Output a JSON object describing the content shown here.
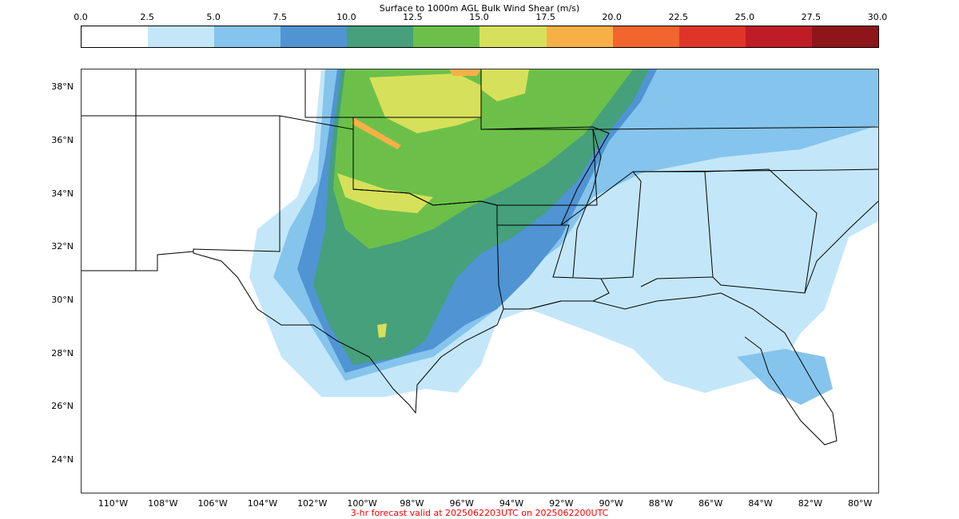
{
  "colorbar": {
    "title": "Surface to 1000m AGL Bulk Wind Shear (m/s)",
    "ticks": [
      "0.0",
      "2.5",
      "5.0",
      "7.5",
      "10.0",
      "12.5",
      "15.0",
      "17.5",
      "20.0",
      "22.5",
      "25.0",
      "27.5",
      "30.0"
    ],
    "bins": [
      {
        "range": "0.0-2.5",
        "color": "#ffffff"
      },
      {
        "range": "2.5-5.0",
        "color": "#c3e7f9"
      },
      {
        "range": "5.0-7.5",
        "color": "#85c4ec"
      },
      {
        "range": "7.5-10.0",
        "color": "#5094d3"
      },
      {
        "range": "10.0-12.5",
        "color": "#45a07b"
      },
      {
        "range": "12.5-15.0",
        "color": "#6cc04a"
      },
      {
        "range": "15.0-17.5",
        "color": "#d7e05a"
      },
      {
        "range": "17.5-20.0",
        "color": "#f7b046"
      },
      {
        "range": "20.0-22.5",
        "color": "#f2652e"
      },
      {
        "range": "22.5-25.0",
        "color": "#df3529"
      },
      {
        "range": "25.0-27.5",
        "color": "#bf1c26"
      },
      {
        "range": "27.5-30.0",
        "color": "#8e1519"
      }
    ]
  },
  "map": {
    "lat_labels": [
      "38°N",
      "36°N",
      "34°N",
      "32°N",
      "30°N",
      "28°N",
      "26°N",
      "24°N"
    ],
    "lon_labels": [
      "110°W",
      "108°W",
      "106°W",
      "104°W",
      "102°W",
      "100°W",
      "98°W",
      "96°W",
      "94°W",
      "92°W",
      "90°W",
      "88°W",
      "86°W",
      "84°W",
      "82°W",
      "80°W"
    ],
    "lat_values": [
      38,
      36,
      34,
      32,
      30,
      28,
      26,
      24
    ],
    "lon_values": [
      -110,
      -108,
      -106,
      -104,
      -102,
      -100,
      -98,
      -96,
      -94,
      -92,
      -90,
      -88,
      -86,
      -84,
      -82,
      -80
    ],
    "extent": {
      "lon_min": -111.3,
      "lon_max": -79.3,
      "lat_min": 22.8,
      "lat_max": 38.7
    }
  },
  "footer": {
    "text": "3-hr forecast valid at 2025062203UTC on 2025062200UTC",
    "color": "#ff0000"
  }
}
